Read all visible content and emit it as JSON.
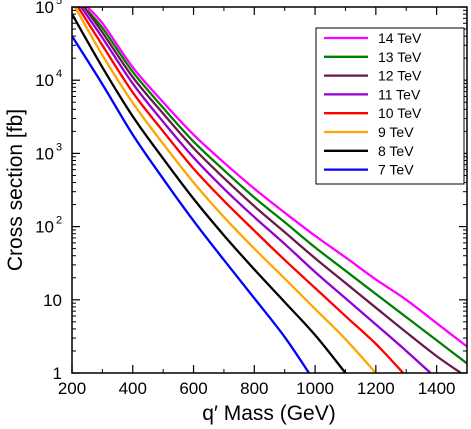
{
  "chart_data": {
    "type": "line",
    "xlabel": "q′ Mass  (GeV)",
    "ylabel": "Cross section  [fb]",
    "xlim": [
      200,
      1500
    ],
    "ylim": [
      1,
      100000
    ],
    "y_scale": "log",
    "grid": false,
    "legend_position": "top-right",
    "x_ticks": [
      "200",
      "400",
      "600",
      "800",
      "1000",
      "1200",
      "1400"
    ],
    "x_tick_values": [
      200,
      400,
      600,
      800,
      1000,
      1200,
      1400
    ],
    "y_ticks": [
      {
        "value": 1,
        "base": "1",
        "exp": ""
      },
      {
        "value": 10,
        "base": "10",
        "exp": ""
      },
      {
        "value": 100,
        "base": "10",
        "exp": "2"
      },
      {
        "value": 1000,
        "base": "10",
        "exp": "3"
      },
      {
        "value": 10000,
        "base": "10",
        "exp": "4"
      },
      {
        "value": 100000,
        "base": "10",
        "exp": "5"
      }
    ],
    "series": [
      {
        "name": "14 TeV",
        "color": "#ff00ff",
        "x": [
          250,
          300,
          400,
          500,
          600,
          700,
          800,
          900,
          1000,
          1100,
          1200,
          1300,
          1400,
          1500
        ],
        "y": [
          100000,
          60000,
          15000,
          5000,
          1800,
          750,
          330,
          155,
          75,
          38,
          19,
          10,
          4.8,
          2.3
        ]
      },
      {
        "name": "13 TeV",
        "color": "#008000",
        "x": [
          250,
          300,
          400,
          500,
          600,
          700,
          800,
          900,
          1000,
          1100,
          1200,
          1300,
          1400,
          1500
        ],
        "y": [
          90000,
          52000,
          13000,
          4200,
          1450,
          590,
          250,
          115,
          52,
          25,
          12,
          5.8,
          2.8,
          1.35
        ]
      },
      {
        "name": "12 TeV",
        "color": "#6a1a4a",
        "x": [
          240,
          300,
          400,
          500,
          600,
          700,
          800,
          900,
          1000,
          1100,
          1200,
          1300,
          1400,
          1480
        ],
        "y": [
          100000,
          45000,
          11000,
          3500,
          1180,
          460,
          190,
          84,
          37,
          17,
          7.8,
          3.6,
          1.7,
          1
        ]
      },
      {
        "name": "11 TeV",
        "color": "#9400d3",
        "x": [
          230,
          300,
          400,
          500,
          600,
          700,
          800,
          900,
          1000,
          1100,
          1200,
          1300,
          1380
        ],
        "y": [
          100000,
          38000,
          9000,
          2700,
          880,
          330,
          135,
          58,
          24,
          10.5,
          4.6,
          2,
          1
        ]
      },
      {
        "name": "10 TeV",
        "color": "#ff0000",
        "x": [
          220,
          300,
          400,
          500,
          600,
          700,
          800,
          900,
          1000,
          1100,
          1200,
          1290
        ],
        "y": [
          100000,
          30000,
          6800,
          2000,
          620,
          225,
          88,
          35,
          14.5,
          6,
          2.5,
          1
        ]
      },
      {
        "name": "9 TeV",
        "color": "#ffa500",
        "x": [
          210,
          300,
          400,
          500,
          600,
          700,
          800,
          900,
          1000,
          1100,
          1200
        ],
        "y": [
          100000,
          22000,
          4900,
          1350,
          400,
          135,
          50,
          19.5,
          7.5,
          2.9,
          1
        ]
      },
      {
        "name": "8 TeV",
        "color": "#000000",
        "x": [
          200,
          300,
          400,
          500,
          600,
          700,
          800,
          900,
          1000,
          1100
        ],
        "y": [
          80000,
          15000,
          3200,
          850,
          240,
          76,
          26,
          9.3,
          3.3,
          1
        ]
      },
      {
        "name": "7 TeV",
        "color": "#0000ff",
        "x": [
          200,
          300,
          400,
          500,
          600,
          700,
          800,
          900,
          980
        ],
        "y": [
          40000,
          8800,
          1800,
          450,
          120,
          35,
          10.5,
          3.1,
          1
        ]
      }
    ]
  }
}
